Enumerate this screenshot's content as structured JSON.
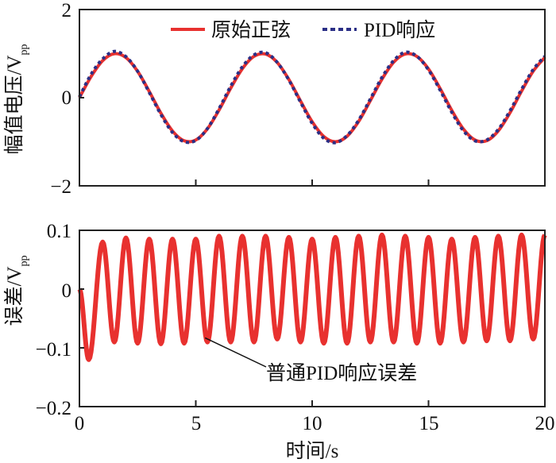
{
  "chart_data": [
    {
      "type": "line",
      "ylabel": "幅值电压/V",
      "ylabel_sub": "pp",
      "xlim": [
        0,
        20
      ],
      "ylim": [
        -2,
        2
      ],
      "yticks": [
        "2",
        "0",
        "−2"
      ],
      "ytick_values": [
        2,
        0,
        -2
      ],
      "xtick_values": [
        5,
        10,
        15
      ],
      "grid": false,
      "legend_position": "top",
      "series": [
        {
          "name": "原始正弦",
          "color": "#e8312f",
          "style": "solid",
          "x": [
            0,
            0.5,
            1,
            1.5,
            2,
            2.5,
            3,
            3.5,
            4,
            4.5,
            5,
            5.5,
            6,
            6.5,
            7,
            7.5,
            8,
            8.5,
            9,
            9.5,
            10,
            10.5,
            11,
            11.5,
            12,
            12.5,
            13,
            13.5,
            14,
            14.5,
            15,
            15.5,
            16,
            16.5,
            17,
            17.5,
            18,
            18.5,
            19,
            19.5,
            20
          ],
          "y": [
            0,
            0.479,
            0.841,
            0.997,
            0.909,
            0.598,
            0.141,
            -0.351,
            -0.757,
            -0.978,
            -0.959,
            -0.706,
            -0.279,
            0.215,
            0.657,
            0.938,
            0.989,
            0.798,
            0.412,
            -0.075,
            -0.544,
            -0.88,
            -1.0,
            -0.875,
            -0.537,
            -0.066,
            0.42,
            0.804,
            0.991,
            0.935,
            0.65,
            0.206,
            -0.288,
            -0.712,
            -0.961,
            -0.976,
            -0.751,
            -0.342,
            0.15,
            0.603,
            0.913
          ]
        },
        {
          "name": "PID响应",
          "color": "#2b2f86",
          "style": "dashed",
          "x": [
            0,
            0.5,
            1,
            1.5,
            2,
            2.5,
            3,
            3.5,
            4,
            4.5,
            5,
            5.5,
            6,
            6.5,
            7,
            7.5,
            8,
            8.5,
            9,
            9.5,
            10,
            10.5,
            11,
            11.5,
            12,
            12.5,
            13,
            13.5,
            14,
            14.5,
            15,
            15.5,
            16,
            16.5,
            17,
            17.5,
            18,
            18.5,
            19,
            19.5,
            20
          ],
          "y": [
            0.02,
            0.53,
            0.88,
            1.05,
            0.93,
            0.6,
            0.12,
            -0.38,
            -0.79,
            -1.0,
            -0.97,
            -0.7,
            -0.25,
            0.26,
            0.7,
            0.97,
            1.02,
            0.8,
            0.4,
            -0.1,
            -0.58,
            -0.92,
            -1.02,
            -0.86,
            -0.51,
            -0.03,
            0.46,
            0.84,
            1.03,
            0.94,
            0.63,
            0.17,
            -0.33,
            -0.75,
            -0.98,
            -0.96,
            -0.72,
            -0.3,
            0.19,
            0.64,
            0.94
          ]
        }
      ]
    },
    {
      "type": "line",
      "xlabel": "时间/s",
      "ylabel": "误差/V",
      "ylabel_sub": "pp",
      "xlim": [
        0,
        20
      ],
      "ylim": [
        -0.2,
        0.1
      ],
      "xticks": [
        "0",
        "5",
        "10",
        "15",
        "20"
      ],
      "xtick_values": [
        0,
        5,
        10,
        15,
        20
      ],
      "yticks": [
        "0.1",
        "0",
        "−0.1",
        "−0.2"
      ],
      "ytick_values": [
        0.1,
        0,
        -0.1,
        -0.2
      ],
      "grid": false,
      "annotation": {
        "text": "普通PID响应误差",
        "x": 5.4,
        "y": -0.083
      },
      "series": [
        {
          "color": "#e8312f",
          "style": "solid",
          "extrema_x": [
            0,
            0.4,
            1,
            1.5,
            2,
            2.5,
            3,
            3.5,
            4,
            4.5,
            5,
            5.5,
            6,
            6.5,
            7,
            7.5,
            8,
            8.5,
            9,
            9.5,
            10,
            10.5,
            11,
            11.5,
            12,
            12.5,
            13,
            13.5,
            14,
            14.5,
            15,
            15.5,
            16,
            16.5,
            17,
            17.5,
            18,
            18.5,
            19,
            19.5,
            20
          ],
          "extrema_y": [
            0,
            -0.12,
            0.08,
            -0.09,
            0.087,
            -0.092,
            0.085,
            -0.093,
            0.085,
            -0.092,
            0.085,
            -0.09,
            0.09,
            -0.09,
            0.09,
            -0.09,
            0.09,
            -0.085,
            0.088,
            -0.09,
            0.085,
            -0.092,
            0.088,
            -0.092,
            0.09,
            -0.09,
            0.092,
            -0.09,
            0.09,
            -0.092,
            0.088,
            -0.092,
            0.085,
            -0.09,
            0.088,
            -0.088,
            0.09,
            -0.088,
            0.092,
            -0.085,
            0.092
          ]
        }
      ]
    }
  ]
}
